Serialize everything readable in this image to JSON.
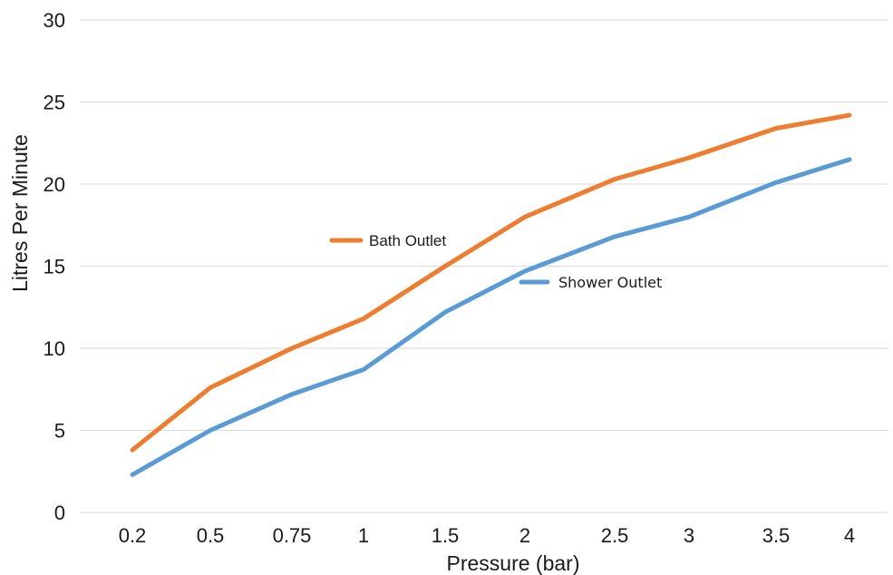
{
  "chart_data": {
    "type": "line",
    "categories": [
      "0.2",
      "0.5",
      "0.75",
      "1",
      "1.5",
      "2",
      "2.5",
      "3",
      "3.5",
      "4"
    ],
    "series": [
      {
        "name": "Bath Outlet",
        "color": "#ED7D31",
        "values": [
          3.8,
          7.6,
          10.0,
          11.8,
          15.0,
          18.0,
          20.3,
          21.6,
          23.4,
          24.2
        ]
      },
      {
        "name": "Shower Outlet",
        "color": "#5B9BD5",
        "values": [
          2.3,
          5.0,
          7.2,
          8.7,
          12.2,
          14.7,
          16.8,
          18.0,
          20.1,
          21.5
        ]
      }
    ],
    "xlabel": "Pressure (bar)",
    "ylabel": "Litres Per Minute",
    "ylim": [
      0,
      30
    ],
    "yticks": [
      0,
      5,
      10,
      15,
      20,
      25,
      30
    ],
    "grid": true,
    "legend": "inline"
  }
}
